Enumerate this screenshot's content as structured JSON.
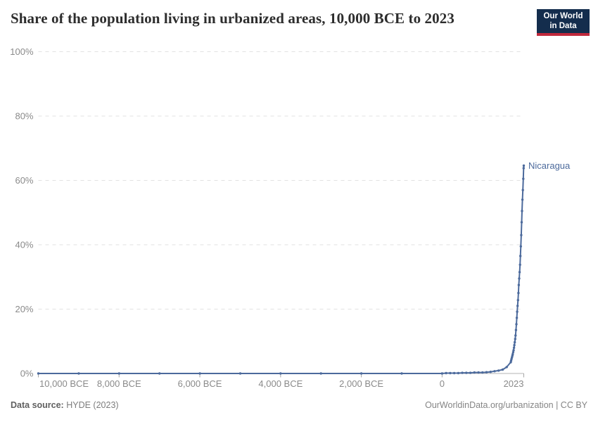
{
  "header": {
    "title": "Share of the population living in urbanized areas, 10,000 BCE to 2023",
    "logo": {
      "line1": "Our World",
      "line2": "in Data",
      "bg_color": "#142d4d",
      "accent_color": "#c0283c"
    }
  },
  "footer": {
    "source_label": "Data source:",
    "source_value": "HYDE (2023)",
    "right_text": "OurWorldinData.org/urbanization | CC BY"
  },
  "chart_data": {
    "type": "line",
    "title": "Share of the population living in urbanized areas, 10,000 BCE to 2023",
    "xlabel": "",
    "ylabel": "",
    "x_domain": [
      -10000,
      2023
    ],
    "ylim": [
      0,
      100
    ],
    "grid": true,
    "legend_position": "end-of-line-label",
    "y_ticks": [
      {
        "value": 0,
        "label": "0%"
      },
      {
        "value": 20,
        "label": "20%"
      },
      {
        "value": 40,
        "label": "40%"
      },
      {
        "value": 60,
        "label": "60%"
      },
      {
        "value": 80,
        "label": "80%"
      },
      {
        "value": 100,
        "label": "100%"
      }
    ],
    "x_ticks": [
      {
        "year": -10000,
        "label": "10,000 BCE"
      },
      {
        "year": -8000,
        "label": "8,000 BCE"
      },
      {
        "year": -6000,
        "label": "6,000 BCE"
      },
      {
        "year": -4000,
        "label": "4,000 BCE"
      },
      {
        "year": -2000,
        "label": "2,000 BCE"
      },
      {
        "year": 0,
        "label": "0"
      },
      {
        "year": 2023,
        "label": "2023"
      }
    ],
    "series": [
      {
        "name": "Nicaragua",
        "color": "#4c6a9c",
        "points": [
          [
            -10000,
            0
          ],
          [
            -9000,
            0
          ],
          [
            -8000,
            0
          ],
          [
            -7000,
            0
          ],
          [
            -6000,
            0
          ],
          [
            -5000,
            0
          ],
          [
            -4000,
            0
          ],
          [
            -3000,
            0
          ],
          [
            -2000,
            0
          ],
          [
            -1000,
            0
          ],
          [
            0,
            0
          ],
          [
            100,
            0.1
          ],
          [
            200,
            0.1
          ],
          [
            300,
            0.1
          ],
          [
            400,
            0.1
          ],
          [
            500,
            0.2
          ],
          [
            600,
            0.2
          ],
          [
            700,
            0.2
          ],
          [
            800,
            0.3
          ],
          [
            900,
            0.3
          ],
          [
            1000,
            0.3
          ],
          [
            1100,
            0.4
          ],
          [
            1200,
            0.5
          ],
          [
            1300,
            0.7
          ],
          [
            1400,
            0.9
          ],
          [
            1500,
            1.2
          ],
          [
            1600,
            2
          ],
          [
            1700,
            3.5
          ],
          [
            1710,
            4
          ],
          [
            1720,
            4.5
          ],
          [
            1730,
            5
          ],
          [
            1740,
            5.5
          ],
          [
            1750,
            6
          ],
          [
            1760,
            6.6
          ],
          [
            1770,
            7.2
          ],
          [
            1780,
            8
          ],
          [
            1790,
            8.8
          ],
          [
            1800,
            9.7
          ],
          [
            1810,
            10.7
          ],
          [
            1820,
            11.8
          ],
          [
            1830,
            13.5
          ],
          [
            1840,
            15.3
          ],
          [
            1850,
            17.3
          ],
          [
            1860,
            19.2
          ],
          [
            1870,
            21
          ],
          [
            1880,
            22.8
          ],
          [
            1890,
            25
          ],
          [
            1900,
            27.5
          ],
          [
            1910,
            29.5
          ],
          [
            1920,
            31.5
          ],
          [
            1930,
            33.8
          ],
          [
            1940,
            36.5
          ],
          [
            1950,
            39.5
          ],
          [
            1960,
            43
          ],
          [
            1970,
            47
          ],
          [
            1980,
            50.5
          ],
          [
            1990,
            54
          ],
          [
            2000,
            57
          ],
          [
            2010,
            60.5
          ],
          [
            2020,
            63.8
          ],
          [
            2023,
            64.6
          ]
        ]
      }
    ]
  }
}
